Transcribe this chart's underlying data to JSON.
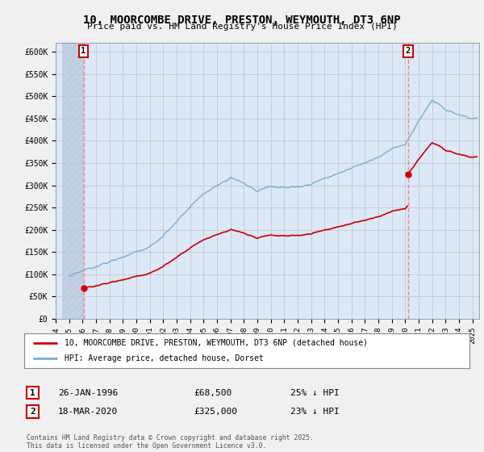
{
  "title": "10, MOORCOMBE DRIVE, PRESTON, WEYMOUTH, DT3 6NP",
  "subtitle": "Price paid vs. HM Land Registry's House Price Index (HPI)",
  "legend_line1": "10, MOORCOMBE DRIVE, PRESTON, WEYMOUTH, DT3 6NP (detached house)",
  "legend_line2": "HPI: Average price, detached house, Dorset",
  "footer": "Contains HM Land Registry data © Crown copyright and database right 2025.\nThis data is licensed under the Open Government Licence v3.0.",
  "annotation1": {
    "label": "1",
    "date": "26-JAN-1996",
    "price": "£68,500",
    "note": "25% ↓ HPI"
  },
  "annotation2": {
    "label": "2",
    "date": "18-MAR-2020",
    "price": "£325,000",
    "note": "23% ↓ HPI"
  },
  "ylim": [
    0,
    620000
  ],
  "yticks": [
    0,
    50000,
    100000,
    150000,
    200000,
    250000,
    300000,
    350000,
    400000,
    450000,
    500000,
    550000,
    600000
  ],
  "ytick_labels": [
    "£0",
    "£50K",
    "£100K",
    "£150K",
    "£200K",
    "£250K",
    "£300K",
    "£350K",
    "£400K",
    "£450K",
    "£500K",
    "£550K",
    "£600K"
  ],
  "hpi_color": "#7aadd4",
  "price_color": "#cc0000",
  "vline_color": "#ee8888",
  "background_color": "#f0f0f0",
  "plot_bg_color": "#dce8f5",
  "hatch_color": "#c0c8d8",
  "marker1_x": 1996.07,
  "marker1_y": 68500,
  "marker2_x": 2020.21,
  "marker2_y": 325000,
  "xmin": 1994.5,
  "xmax": 2025.5
}
